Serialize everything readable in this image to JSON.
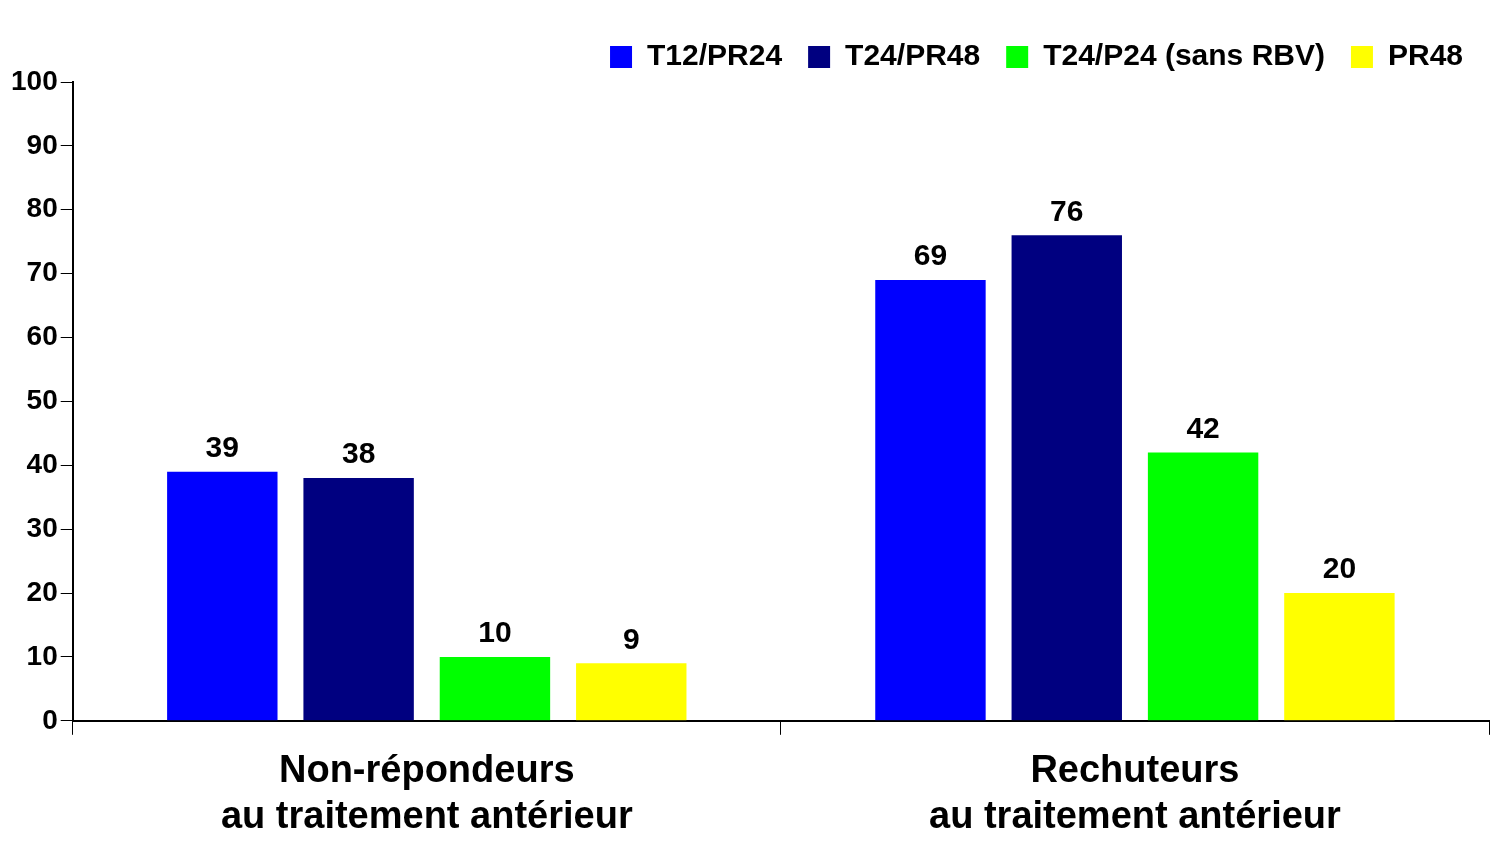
{
  "chart_data": {
    "type": "bar",
    "categories": [
      "Non-répondeurs\nau traitement antérieur",
      "Rechuteurs\nau traitement antérieur"
    ],
    "series": [
      {
        "name": "T12/PR24",
        "color": "#0000ff",
        "values": [
          39,
          69
        ]
      },
      {
        "name": "T24/PR48",
        "color": "#000080",
        "values": [
          38,
          76
        ]
      },
      {
        "name": "T24/P24 (sans RBV)",
        "color": "#00ff00",
        "values": [
          10,
          42
        ]
      },
      {
        "name": "PR48",
        "color": "#ffff00",
        "values": [
          9,
          20
        ]
      }
    ],
    "ylim": [
      0,
      100
    ],
    "yticks": [
      0,
      10,
      20,
      30,
      40,
      50,
      60,
      70,
      80,
      90,
      100
    ],
    "grid": false,
    "legend": "top right",
    "data_labels": true
  }
}
